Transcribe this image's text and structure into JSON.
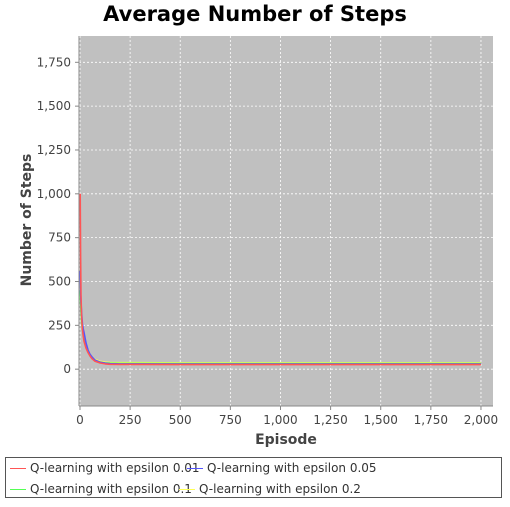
{
  "chart_data": {
    "type": "line",
    "title": "Average Number of Steps",
    "xlabel": "Episode",
    "ylabel": "Number of Steps",
    "xlim": [
      -5,
      2060
    ],
    "ylim": [
      -210,
      1900
    ],
    "x_ticks": [
      0,
      250,
      500,
      750,
      1000,
      1250,
      1500,
      1750,
      2000
    ],
    "x_tick_labels": [
      "0",
      "250",
      "500",
      "750",
      "1,000",
      "1,250",
      "1,500",
      "1,750",
      "2,000"
    ],
    "y_ticks": [
      0,
      250,
      500,
      750,
      1000,
      1250,
      1500,
      1750
    ],
    "y_tick_labels": [
      "0",
      "250",
      "500",
      "750",
      "1,000",
      "1,250",
      "1,500",
      "1,750"
    ],
    "grid": true,
    "plot_background": "#c0c0c0",
    "legend_position": "bottom",
    "series": [
      {
        "name": "Q-learning with epsilon 0.01",
        "color": "#ff5555",
        "x": [
          1,
          3,
          5,
          8,
          12,
          16,
          20,
          25,
          30,
          40,
          50,
          60,
          75,
          100,
          125,
          150,
          200,
          300,
          500,
          750,
          1000,
          1250,
          1500,
          1750,
          2000
        ],
        "y": [
          1000,
          650,
          420,
          300,
          230,
          190,
          160,
          140,
          120,
          95,
          75,
          60,
          45,
          35,
          30,
          28,
          27,
          27,
          26,
          26,
          26,
          26,
          26,
          26,
          26
        ]
      },
      {
        "name": "Q-learning with epsilon 0.05",
        "color": "#5555ff",
        "x": [
          1,
          3,
          5,
          8,
          12,
          16,
          20,
          25,
          30,
          40,
          50,
          60,
          75,
          100,
          125,
          150,
          200,
          300,
          500,
          750,
          1000,
          1250,
          1500,
          1750,
          2000
        ],
        "y": [
          560,
          440,
          380,
          320,
          260,
          230,
          210,
          180,
          150,
          110,
          85,
          70,
          52,
          40,
          34,
          31,
          30,
          30,
          29,
          29,
          29,
          29,
          29,
          29,
          29
        ]
      },
      {
        "name": "Q-learning with epsilon 0.1",
        "color": "#55ff55",
        "x": [
          1,
          3,
          5,
          8,
          12,
          16,
          20,
          25,
          30,
          40,
          50,
          60,
          75,
          100,
          125,
          150,
          200,
          300,
          500,
          750,
          1000,
          1250,
          1500,
          1750,
          2000
        ],
        "y": [
          450,
          380,
          320,
          270,
          230,
          200,
          180,
          160,
          140,
          105,
          80,
          65,
          50,
          40,
          36,
          34,
          33,
          33,
          32,
          32,
          32,
          32,
          32,
          32,
          32
        ]
      },
      {
        "name": "Q-learning with epsilon 0.2",
        "color": "#ffff55",
        "x": [
          1,
          3,
          5,
          8,
          12,
          16,
          20,
          25,
          30,
          40,
          50,
          60,
          75,
          100,
          125,
          150,
          200,
          300,
          500,
          750,
          1000,
          1250,
          1500,
          1750,
          2000
        ],
        "y": [
          520,
          430,
          360,
          300,
          250,
          220,
          190,
          165,
          145,
          110,
          85,
          70,
          55,
          45,
          40,
          38,
          37,
          37,
          36,
          36,
          36,
          36,
          36,
          36,
          36
        ]
      }
    ]
  }
}
